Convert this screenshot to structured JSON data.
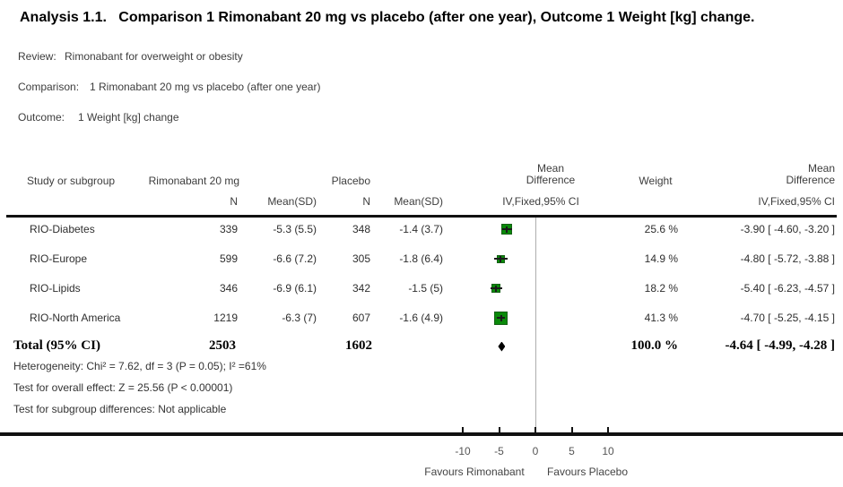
{
  "title": "Analysis 1.1.   Comparison 1 Rimonabant 20 mg vs placebo (after one year), Outcome 1 Weight [kg] change.",
  "meta": {
    "review_label": "Review:",
    "review_value": "Rimonabant for overweight or obesity",
    "comparison_label": "Comparison:",
    "comparison_value": "1 Rimonabant 20 mg vs placebo (after one year)",
    "outcome_label": "Outcome:",
    "outcome_value": "1 Weight [kg] change"
  },
  "table_headers": {
    "study": "Study or subgroup",
    "treatment_group": "Rimonabant 20 mg",
    "control_group": "Placebo",
    "n": "N",
    "mean_sd": "Mean(SD)",
    "md_line1": "Mean",
    "md_line2": "Difference",
    "ci_method": "IV,Fixed,95% CI",
    "weight": "Weight"
  },
  "chart_data": {
    "type": "forest",
    "title": "Comparison 1 Rimonabant 20 mg vs placebo (after one year), Outcome 1 Weight [kg] change",
    "effect_measure": "Mean Difference, IV, Fixed, 95% CI",
    "studies": [
      {
        "name": "RIO-Diabetes",
        "t_n": "339",
        "t_mean_sd": "-5.3 (5.5)",
        "c_n": "348",
        "c_mean_sd": "-1.4 (3.7)",
        "weight_text": "25.6 %",
        "ci_text": "-3.90 [ -4.60, -3.20 ]",
        "md": -3.9,
        "ci_low": -4.6,
        "ci_high": -3.2,
        "weight_pct": 25.6
      },
      {
        "name": "RIO-Europe",
        "t_n": "599",
        "t_mean_sd": "-6.6 (7.2)",
        "c_n": "305",
        "c_mean_sd": "-1.8 (6.4)",
        "weight_text": "14.9 %",
        "ci_text": "-4.80 [ -5.72, -3.88 ]",
        "md": -4.8,
        "ci_low": -5.72,
        "ci_high": -3.88,
        "weight_pct": 14.9
      },
      {
        "name": "RIO-Lipids",
        "t_n": "346",
        "t_mean_sd": "-6.9 (6.1)",
        "c_n": "342",
        "c_mean_sd": "-1.5 (5)",
        "weight_text": "18.2 %",
        "ci_text": "-5.40 [ -6.23, -4.57 ]",
        "md": -5.4,
        "ci_low": -6.23,
        "ci_high": -4.57,
        "weight_pct": 18.2
      },
      {
        "name": "RIO-North America",
        "t_n": "1219",
        "t_mean_sd": "-6.3 (7)",
        "c_n": "607",
        "c_mean_sd": "-1.6 (4.9)",
        "weight_text": "41.3 %",
        "ci_text": "-4.70 [ -5.25, -4.15 ]",
        "md": -4.7,
        "ci_low": -5.25,
        "ci_high": -4.15,
        "weight_pct": 41.3
      }
    ],
    "total": {
      "label": "Total (95% CI)",
      "t_n": "2503",
      "c_n": "1602",
      "weight_text": "100.0 %",
      "ci_text": "-4.64 [ -4.99, -4.28 ]",
      "md": -4.64,
      "ci_low": -4.99,
      "ci_high": -4.28
    },
    "axis": {
      "ticks": [
        -10,
        -5,
        0,
        5,
        10
      ],
      "favours_left": "Favours Rimonabant",
      "favours_right": "Favours Placebo"
    }
  },
  "footnotes": {
    "heterogeneity": "Heterogeneity: Chi² = 7.62, df = 3 (P = 0.05); I² =61%",
    "overall_effect": "Test for overall effect: Z = 25.56 (P < 0.00001)",
    "subgroup": "Test for subgroup differences: Not applicable"
  },
  "colors": {
    "marker_fill": "#0a8a0a",
    "marker_border": "#156015",
    "ci_line": "#1a1a1a",
    "diamond": "#000000",
    "zero_line": "#adadad",
    "axis_line": "#111111"
  }
}
